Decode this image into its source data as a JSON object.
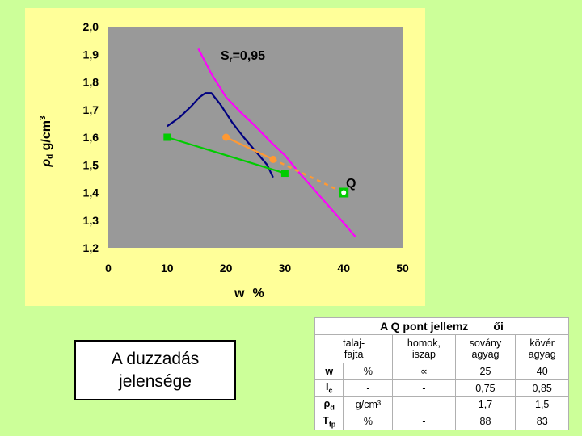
{
  "chart_data": {
    "type": "scatter",
    "xlabel": "w  %",
    "ylabel": "ρd g/cm³",
    "xlim": [
      0,
      50
    ],
    "ylim": [
      1.2,
      2.0
    ],
    "x_ticks": [
      "0",
      "10",
      "20",
      "30",
      "40",
      "50"
    ],
    "y_ticks": [
      "1,2",
      "1,3",
      "1,4",
      "1,5",
      "1,6",
      "1,7",
      "1,8",
      "1,9",
      "2,0"
    ],
    "grid": false,
    "plot_background": "#999999",
    "saturation_label": "Sr=0,95",
    "point_label": "Q",
    "series": [
      {
        "color": "#ff00ff",
        "style": "line",
        "x": [
          15.3,
          17.5,
          20,
          22.5,
          25,
          27.5,
          30,
          32.5,
          35,
          37.5,
          40,
          42
        ],
        "y": [
          1.92,
          1.83,
          1.745,
          1.69,
          1.64,
          1.585,
          1.535,
          1.47,
          1.41,
          1.35,
          1.29,
          1.24
        ]
      },
      {
        "color": "#000080",
        "style": "line",
        "x": [
          10,
          12,
          14,
          15.5,
          16.5,
          17.5,
          19,
          21,
          23,
          25,
          27,
          28
        ],
        "y": [
          1.64,
          1.67,
          1.71,
          1.745,
          1.76,
          1.76,
          1.72,
          1.655,
          1.6,
          1.55,
          1.5,
          1.455
        ]
      },
      {
        "color": "#00cc00",
        "style": "line-markers",
        "x": [
          10,
          30
        ],
        "y": [
          1.6,
          1.47
        ]
      },
      {
        "color": "#ff9933",
        "style": "line-markers",
        "x": [
          20,
          28
        ],
        "y": [
          1.6,
          1.52
        ]
      },
      {
        "color": "#ff9933",
        "style": "dashed",
        "x": [
          28,
          40
        ],
        "y": [
          1.52,
          1.4
        ]
      },
      {
        "color": "#00cc00",
        "style": "hollow-marker",
        "x": [
          40
        ],
        "y": [
          1.4
        ]
      }
    ]
  },
  "caption": {
    "line1": "A duzzadás",
    "line2": "jelensége"
  },
  "table": {
    "title": "A Q pont jellemz        ői",
    "header": {
      "soil_type": "talaj-\nfajta",
      "col1": "homok,\niszap",
      "col2": "sovány\nagyag",
      "col3": "kövér\nagyag"
    },
    "rows": [
      {
        "symbol": "w",
        "unit": "%",
        "v1": "∝",
        "v2": "25",
        "v3": "40"
      },
      {
        "symbol": "Ic",
        "unit": "-",
        "v1": "-",
        "v2": "0,75",
        "v3": "0,85"
      },
      {
        "symbol": "ρd",
        "unit": "g/cm³",
        "v1": "-",
        "v2": "1,7",
        "v3": "1,5"
      },
      {
        "symbol": "Tfp",
        "unit": "%",
        "v1": "-",
        "v2": "88",
        "v3": "83"
      }
    ]
  }
}
